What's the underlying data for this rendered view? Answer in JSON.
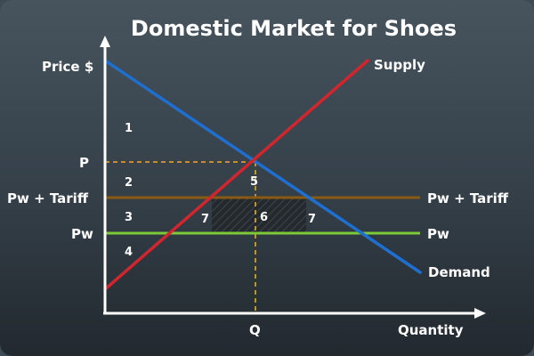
{
  "title": "Domestic Market for Shoes",
  "axes": {
    "y_label": "Price $",
    "x_label": "Quantity"
  },
  "price_labels": {
    "p": "P",
    "pw_tariff": "Pw + Tariff",
    "pw": "Pw"
  },
  "quantity_labels": {
    "q": "Q"
  },
  "curves": {
    "supply": "Supply",
    "demand": "Demand",
    "pw_tariff_line": "Pw + Tariff",
    "pw_line": "Pw"
  },
  "areas": {
    "a1": "1",
    "a2": "2",
    "a3": "3",
    "a4": "4",
    "a5": "5",
    "a6": "6",
    "a7_left": "7",
    "a7_right": "7"
  },
  "colors": {
    "supply": "#d1262e",
    "demand": "#1f6fd1",
    "pw_tariff": "#8a5a12",
    "pw": "#7cc93a",
    "guides": "#f5a623",
    "axes": "#ffffff",
    "area6_fill": "#2a2f35"
  }
}
